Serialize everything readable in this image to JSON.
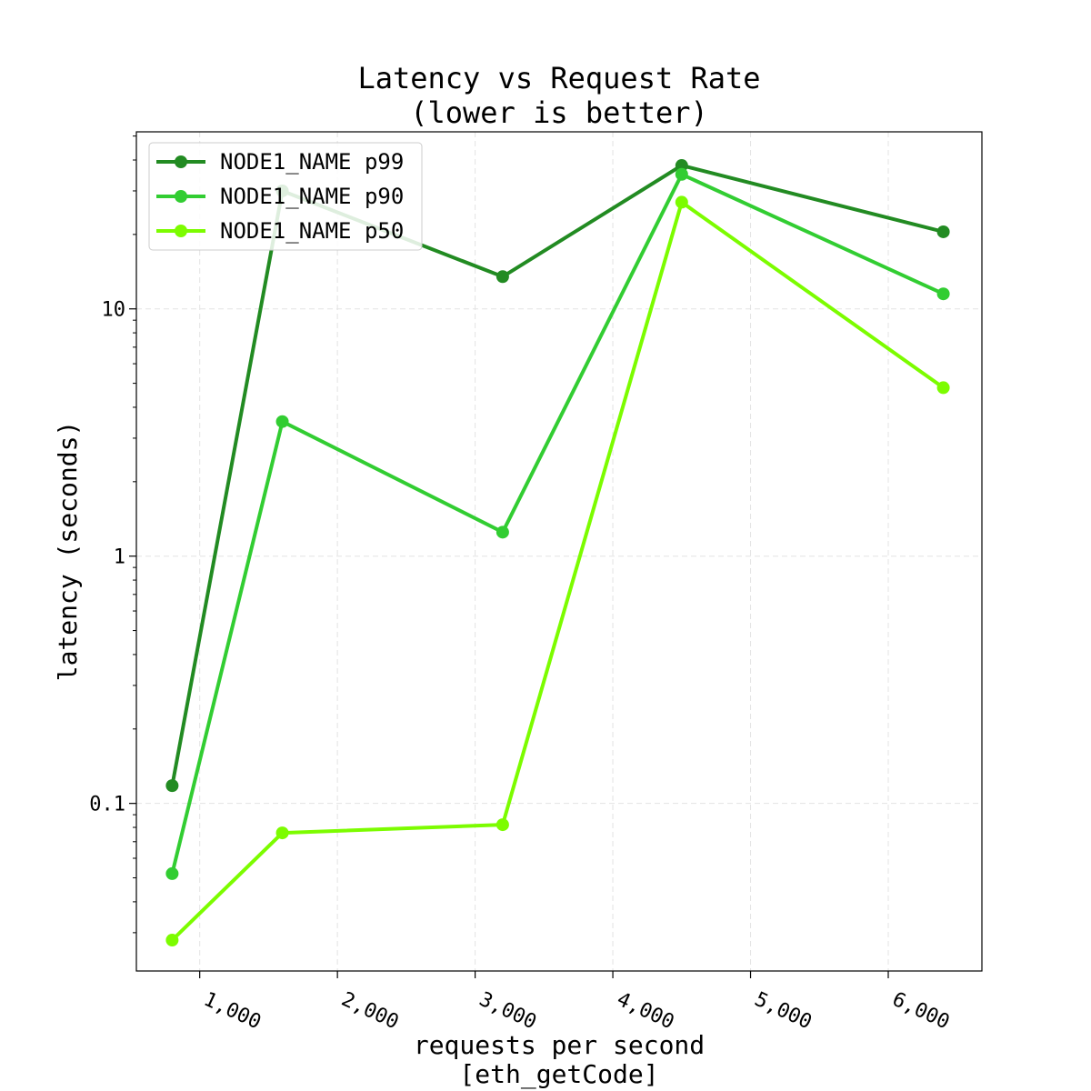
{
  "chart_data": {
    "type": "line",
    "title": [
      "Latency vs Request Rate",
      "(lower is better)"
    ],
    "xlabel": [
      "requests per second",
      "[eth_getCode]"
    ],
    "ylabel": "latency (seconds)",
    "x": [
      800,
      1600,
      3200,
      4500,
      6400
    ],
    "xlim": [
      540,
      6680
    ],
    "ylim": [
      0.021,
      52
    ],
    "yscale": "log",
    "xticks": [
      1000,
      2000,
      3000,
      4000,
      5000,
      6000
    ],
    "xtick_labels": [
      "1,000",
      "2,000",
      "3,000",
      "4,000",
      "5,000",
      "6,000"
    ],
    "yticks": [
      0.1,
      1,
      10
    ],
    "ytick_labels": [
      "0.1",
      "1",
      "10"
    ],
    "grid": true,
    "legend_position": "top-left",
    "series": [
      {
        "name": "NODE1_NAME p99",
        "color": "#228b22",
        "values": [
          0.118,
          30,
          13.5,
          38,
          20.5
        ]
      },
      {
        "name": "NODE1_NAME p90",
        "color": "#32cd32",
        "values": [
          0.052,
          3.5,
          1.25,
          35,
          11.5
        ]
      },
      {
        "name": "NODE1_NAME p50",
        "color": "#7cfc00",
        "values": [
          0.028,
          0.076,
          0.082,
          27,
          4.8
        ]
      }
    ]
  }
}
